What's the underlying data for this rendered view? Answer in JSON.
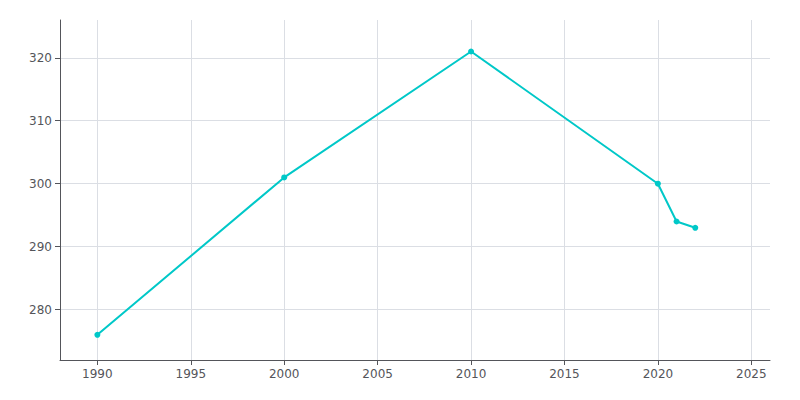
{
  "chart_data": {
    "type": "line",
    "x": [
      1990,
      2000,
      2010,
      2020,
      2021,
      2022
    ],
    "values": [
      276,
      301,
      321,
      300,
      294,
      293
    ],
    "color": "#00C8C8",
    "marker": "circle",
    "xlim": [
      1988,
      2026
    ],
    "ylim": [
      272,
      326
    ],
    "xticks": [
      1990,
      1995,
      2000,
      2005,
      2010,
      2015,
      2020,
      2025
    ],
    "yticks": [
      280,
      290,
      300,
      310,
      320
    ],
    "grid": true
  }
}
